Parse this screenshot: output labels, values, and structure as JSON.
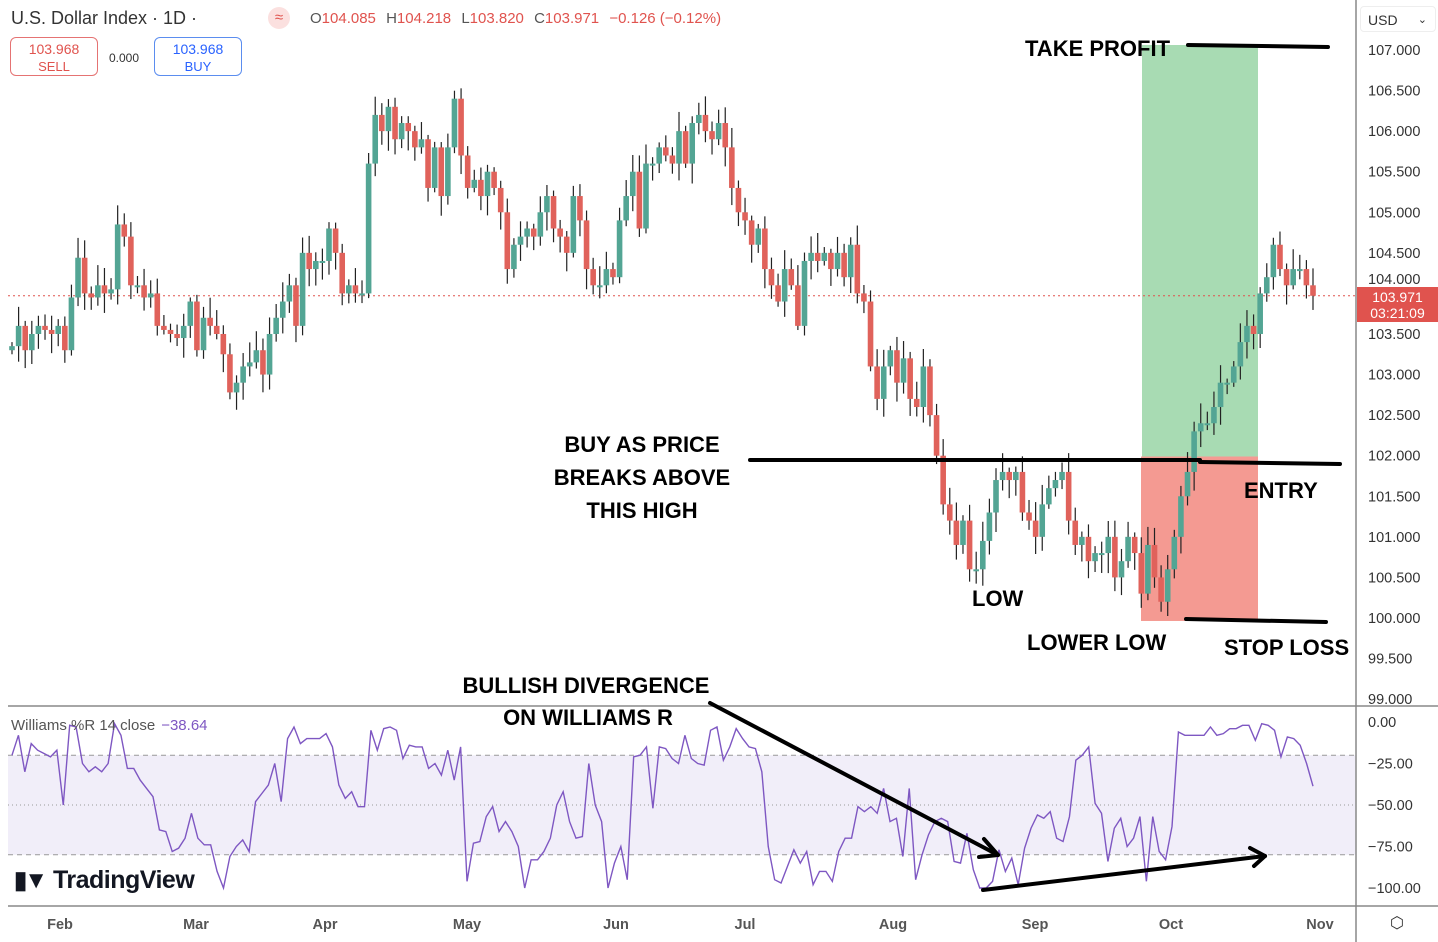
{
  "header": {
    "title": "U.S. Dollar Index · 1D ·",
    "ohlc": {
      "o_label": "O",
      "o": "104.085",
      "h_label": "H",
      "h": "104.218",
      "l_label": "L",
      "l": "103.820",
      "c_label": "C",
      "c": "103.971",
      "change": "−0.126 (−0.12%)"
    },
    "sell": {
      "price": "103.968",
      "label": "SELL"
    },
    "buy": {
      "price": "103.968",
      "label": "BUY"
    },
    "spread": "0.000",
    "currency": "USD",
    "icons": {
      "ohlc": "compare-icon",
      "currency": "chevron-down-icon",
      "settings": "settings-icon"
    }
  },
  "price_tag": {
    "price": "103.971",
    "countdown": "03:21:09"
  },
  "indicator": {
    "name": "Williams %R 14 close",
    "value": "−38.64"
  },
  "logo": "TradingView",
  "colors": {
    "up": "#53a594",
    "down": "#e0625b",
    "wr_line": "#7e57c2",
    "band": "#f1eef9",
    "tp_zone": "#a8dbb3",
    "sl_zone": "#f49a92",
    "last_price": "#e0534e"
  },
  "annotations": {
    "take_profit": "TAKE PROFIT",
    "buy_text": [
      "BUY AS PRICE",
      "BREAKS ABOVE",
      "THIS HIGH"
    ],
    "entry": "ENTRY",
    "low": "LOW",
    "lower_low": "LOWER LOW",
    "stop_loss": "STOP LOSS",
    "divergence": [
      "BULLISH DIVERGENCE",
      "ON WILLIAMS R"
    ]
  },
  "chart_data": [
    {
      "type": "candlestick",
      "title": "U.S. Dollar Index · 1D",
      "ylim": [
        99.0,
        107.0
      ],
      "yticks": [
        "107.000",
        "106.500",
        "106.000",
        "105.500",
        "105.000",
        "104.500",
        "104.000",
        "103.500",
        "103.000",
        "102.500",
        "102.000",
        "101.500",
        "101.000",
        "100.500",
        "100.000",
        "99.500",
        "99.000"
      ],
      "xticks": [
        "Feb",
        "Mar",
        "Apr",
        "May",
        "Jun",
        "Jul",
        "Aug",
        "Sep",
        "Oct",
        "Nov"
      ],
      "last_price": 103.971,
      "trade_zones": {
        "entry": 101.99,
        "take_profit": 107.05,
        "stop_loss": 100.0
      },
      "closes": [
        103.35,
        103.6,
        103.3,
        103.5,
        103.6,
        103.55,
        103.5,
        103.6,
        103.3,
        103.95,
        104.44,
        104.0,
        103.95,
        104.1,
        104.0,
        104.05,
        104.85,
        104.7,
        104.1,
        104.1,
        103.95,
        104.0,
        103.6,
        103.55,
        103.5,
        103.45,
        103.6,
        103.9,
        103.3,
        103.7,
        103.6,
        103.5,
        103.25,
        102.78,
        102.9,
        103.1,
        103.15,
        103.3,
        103.0,
        103.5,
        103.7,
        103.9,
        104.1,
        103.6,
        104.5,
        104.3,
        104.4,
        104.4,
        104.8,
        104.5,
        104.0,
        104.1,
        104.0,
        104.0,
        105.6,
        106.2,
        106.0,
        106.3,
        105.9,
        106.1,
        106.0,
        105.8,
        105.9,
        105.3,
        105.8,
        105.2,
        105.8,
        106.4,
        105.7,
        105.3,
        105.4,
        105.2,
        105.5,
        105.3,
        105.0,
        104.3,
        104.6,
        104.7,
        104.8,
        104.7,
        105.0,
        105.2,
        104.8,
        104.7,
        104.5,
        105.2,
        104.9,
        104.3,
        104.1,
        104.1,
        104.3,
        104.2,
        104.9,
        105.2,
        105.5,
        104.8,
        105.6,
        105.6,
        105.8,
        105.7,
        105.6,
        106.0,
        105.6,
        106.1,
        106.2,
        106.0,
        105.9,
        106.1,
        105.8,
        105.3,
        105.0,
        104.9,
        104.6,
        104.8,
        104.3,
        104.1,
        103.9,
        104.3,
        104.1,
        103.6,
        104.4,
        104.5,
        104.4,
        104.5,
        104.3,
        104.5,
        104.2,
        104.6,
        104.0,
        103.9,
        103.1,
        102.7,
        103.1,
        103.3,
        102.9,
        103.2,
        102.7,
        102.6,
        103.1,
        102.5,
        102.0,
        101.4,
        101.2,
        100.9,
        101.2,
        100.6,
        100.6,
        100.95,
        101.3,
        101.7,
        101.8,
        101.7,
        101.8,
        101.3,
        101.2,
        101.0,
        101.4,
        101.6,
        101.7,
        101.8,
        101.2,
        100.9,
        101.0,
        100.7,
        100.8,
        100.8,
        101.0,
        100.5,
        100.7,
        101.0,
        100.8,
        100.3,
        100.9,
        100.5,
        100.2,
        100.6,
        101.0,
        101.5,
        101.8,
        102.3,
        102.4,
        102.4,
        102.6,
        102.9,
        102.9,
        103.1,
        103.4,
        103.6,
        103.5,
        104.0,
        104.2,
        104.6,
        104.3,
        104.1,
        104.3,
        104.3,
        104.1,
        103.971
      ]
    },
    {
      "type": "line",
      "title": "Williams %R 14 close",
      "ylim": [
        -100,
        0
      ],
      "yticks": [
        "0.00",
        "−25.00",
        "−50.00",
        "−75.00",
        "−100.00"
      ],
      "bands": {
        "upper": -20,
        "middle": -50,
        "lower": -80
      },
      "values": [
        -20,
        -8,
        -30,
        -13,
        -17,
        -19,
        -21,
        -17,
        -50,
        -2,
        -3,
        -25,
        -30,
        -27,
        -30,
        -25,
        -1,
        -8,
        -28,
        -28,
        -35,
        -40,
        -45,
        -65,
        -66,
        -78,
        -76,
        -70,
        -55,
        -70,
        -74,
        -74,
        -90,
        -100,
        -81,
        -75,
        -71,
        -78,
        -48,
        -43,
        -38,
        -25,
        -48,
        -10,
        -3,
        -13,
        -10,
        -10,
        -10,
        -7,
        -15,
        -38,
        -46,
        -42,
        -51,
        -51,
        -5,
        -17,
        -4,
        -3,
        -5,
        -22,
        -14,
        -15,
        -15,
        -28,
        -25,
        -32,
        -17,
        -35,
        -15,
        -96,
        -73,
        -72,
        -57,
        -51,
        -66,
        -60,
        -66,
        -75,
        -100,
        -83,
        -83,
        -78,
        -70,
        -50,
        -42,
        -60,
        -70,
        -69,
        -25,
        -50,
        -60,
        -100,
        -85,
        -75,
        -95,
        -21,
        -20,
        -15,
        -52,
        -15,
        -16,
        -22,
        -25,
        -8,
        -22,
        -25,
        -26,
        -5,
        -3,
        -23,
        -15,
        -4,
        -10,
        -15,
        -16,
        -30,
        -75,
        -95,
        -97,
        -87,
        -77,
        -85,
        -78,
        -98,
        -90,
        -90,
        -96,
        -78,
        -70,
        -70,
        -51,
        -54,
        -51,
        -55,
        -40,
        -60,
        -58,
        -81,
        -40,
        -95,
        -80,
        -68,
        -60,
        -58,
        -60,
        -84,
        -85,
        -67,
        -89,
        -100,
        -100,
        -96,
        -77,
        -90,
        -82,
        -98,
        -76,
        -64,
        -56,
        -58,
        -54,
        -70,
        -72,
        -57,
        -23,
        -20,
        -15,
        -49,
        -55,
        -84,
        -64,
        -58,
        -75,
        -70,
        -57,
        -96,
        -57,
        -78,
        -83,
        -63,
        -6,
        -8,
        -8,
        -8,
        -8,
        -3,
        -8,
        -7,
        -4,
        -4,
        -2,
        -2,
        -11,
        -1,
        -2,
        -5,
        -21,
        -9,
        -10,
        -14,
        -25,
        -38.64
      ]
    }
  ]
}
